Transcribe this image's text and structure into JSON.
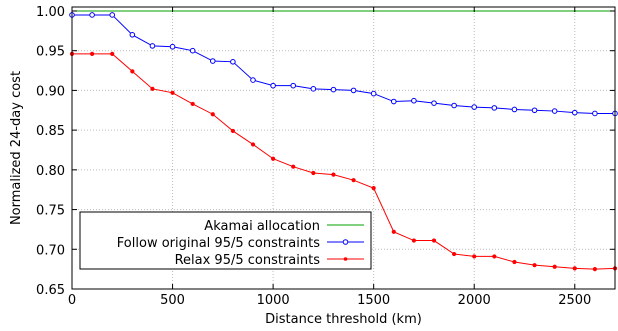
{
  "chart_data": {
    "type": "line",
    "title": "",
    "xlabel": "Distance threshold (km)",
    "ylabel": "Normalized 24-day cost",
    "xlim": [
      0,
      2700
    ],
    "ylim": [
      0.65,
      1.005
    ],
    "xticks": [
      0,
      500,
      1000,
      1500,
      2000,
      2500
    ],
    "yticks": [
      0.65,
      0.7,
      0.75,
      0.8,
      0.85,
      0.9,
      0.95,
      1.0
    ],
    "xtick_labels": [
      "0",
      "500",
      "1000",
      "1500",
      "2000",
      "2500"
    ],
    "ytick_labels": [
      "0.65",
      "0.70",
      "0.75",
      "0.80",
      "0.85",
      "0.90",
      "0.95",
      "1.00"
    ],
    "grid": true,
    "legend_position": "bottom-left",
    "series": [
      {
        "name": "Akamai allocation",
        "color": "#00a000",
        "marker": "none",
        "x": [
          0,
          2700
        ],
        "y": [
          1.0,
          1.0
        ]
      },
      {
        "name": "Follow original 95/5 constraints",
        "color": "#0000ff",
        "marker": "open-circle",
        "x": [
          0,
          100,
          200,
          300,
          400,
          500,
          600,
          700,
          800,
          900,
          1000,
          1100,
          1200,
          1300,
          1400,
          1500,
          1600,
          1700,
          1800,
          1900,
          2000,
          2100,
          2200,
          2300,
          2400,
          2500,
          2600,
          2700
        ],
        "y": [
          0.995,
          0.995,
          0.995,
          0.97,
          0.956,
          0.955,
          0.95,
          0.937,
          0.936,
          0.913,
          0.906,
          0.906,
          0.902,
          0.901,
          0.9,
          0.896,
          0.886,
          0.887,
          0.884,
          0.881,
          0.879,
          0.878,
          0.876,
          0.875,
          0.874,
          0.872,
          0.871,
          0.871
        ]
      },
      {
        "name": "Relax 95/5 constraints",
        "color": "#ff0000",
        "marker": "filled-dot",
        "x": [
          0,
          100,
          200,
          300,
          400,
          500,
          600,
          700,
          800,
          900,
          1000,
          1100,
          1200,
          1300,
          1400,
          1500,
          1600,
          1700,
          1800,
          1900,
          2000,
          2100,
          2200,
          2300,
          2400,
          2500,
          2600,
          2700
        ],
        "y": [
          0.946,
          0.946,
          0.946,
          0.924,
          0.902,
          0.897,
          0.883,
          0.87,
          0.849,
          0.832,
          0.814,
          0.804,
          0.796,
          0.794,
          0.787,
          0.777,
          0.722,
          0.711,
          0.711,
          0.694,
          0.691,
          0.691,
          0.684,
          0.68,
          0.678,
          0.676,
          0.675,
          0.676
        ]
      }
    ]
  }
}
